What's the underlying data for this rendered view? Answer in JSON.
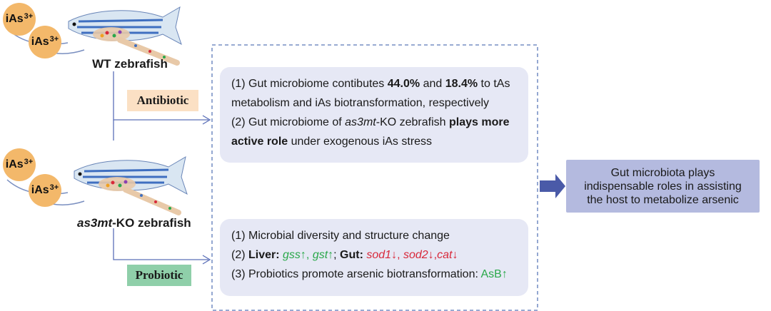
{
  "top_fish": {
    "ion1": "iAs",
    "ion1_charge": "3+",
    "ion2": "iAs",
    "ion2_charge": "3+",
    "label": "WT zebrafish"
  },
  "bottom_fish": {
    "ion1": "iAs",
    "ion1_charge": "3+",
    "ion2": "iAs",
    "ion2_charge": "3+",
    "label_italic": "as3mt",
    "label_rest": "-KO zebrafish"
  },
  "tags": {
    "antibiotic": "Antibiotic",
    "probiotic": "Probiotic"
  },
  "box1": {
    "l1_a": "(1) Gut microbiome contibutes ",
    "l1_b": "44.0%",
    "l1_c": " and ",
    "l1_d": "18.4%",
    "l1_e": " to tAs",
    "l2": "metabolism and iAs biotransformation, respectively",
    "l3_a": "(2) Gut microbiome of ",
    "l3_b": "as3mt",
    "l3_c": "-KO zebrafish ",
    "l3_d": "plays more",
    "l4_a": "active role",
    "l4_b": " under exogenous iAs stress"
  },
  "box2": {
    "l1": "(1) Microbial diversity and structure change",
    "l2_a": "(2) ",
    "l2_b": "Liver: ",
    "l2_c": "gss",
    "l2_d": "↑, ",
    "l2_e": "gst",
    "l2_f": "↑",
    "l2_g": "; ",
    "l2_h": "Gut: ",
    "l2_i": "sod1",
    "l2_j": "↓, ",
    "l2_k": "sod2",
    "l2_l": "↓,",
    "l2_m": "cat",
    "l2_n": "↓",
    "l3_a": "(3) Probiotics promote arsenic biotransformation: ",
    "l3_b": "AsB↑"
  },
  "result": {
    "l1": "Gut microbiota plays",
    "l2": "indispensable roles in assisting",
    "l3": "the host to metabolize arsenic"
  },
  "colors": {
    "antibiotic_tag": "#fbe0c4",
    "probiotic_tag": "#8fcfa9",
    "box_bg": "#e6e8f5",
    "result_bg": "#b4badf",
    "arrow": "#4a5aa8",
    "connector": "#5a6fb8",
    "dashed_border": "#5a78b8",
    "ion": "#f3b86a",
    "up_green": "#2aa84a",
    "down_red": "#d8283a"
  }
}
